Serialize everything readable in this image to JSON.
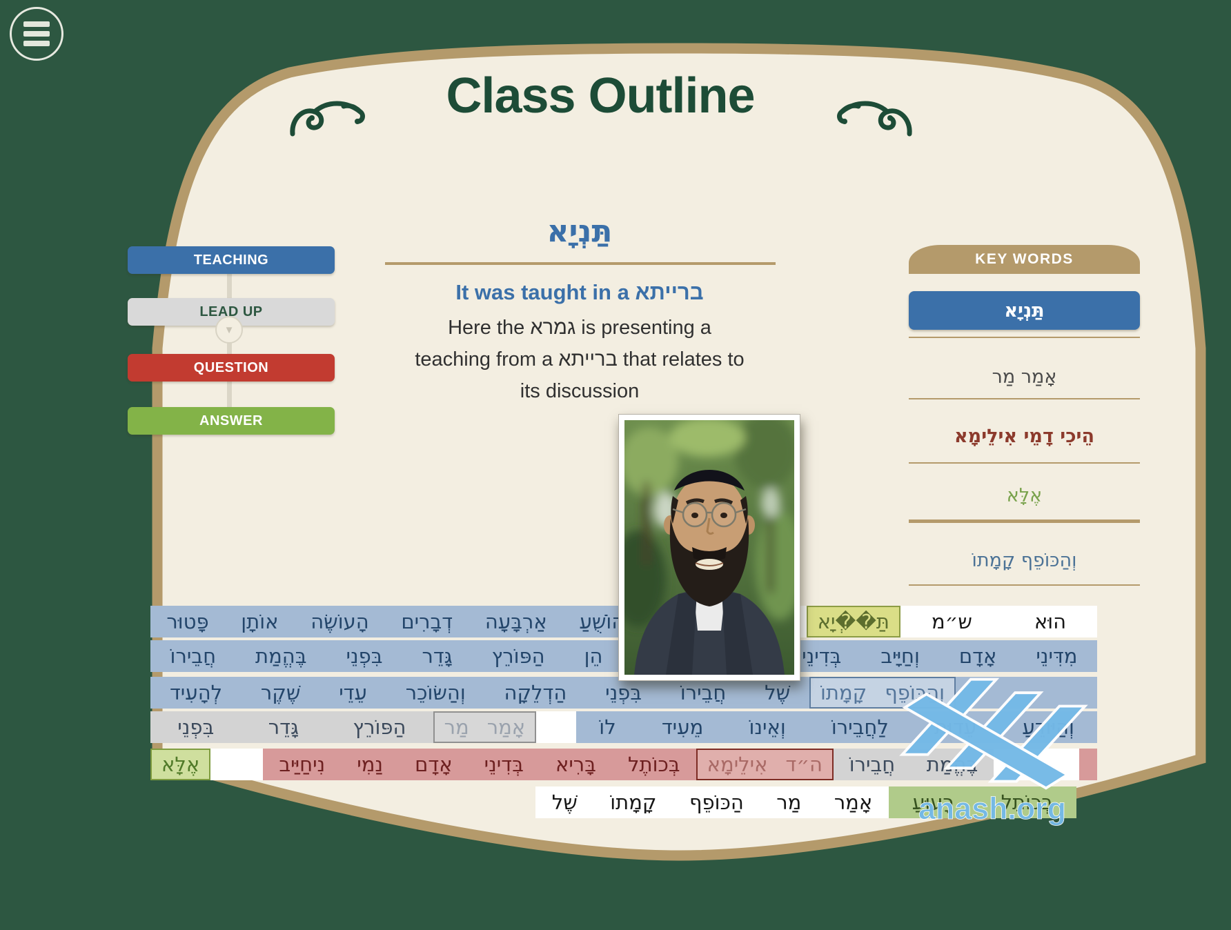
{
  "page_title": "Class Outline",
  "menu": {
    "icon": "hamburger",
    "label": "menu"
  },
  "steps": [
    {
      "label": "TEACHING",
      "role": "teaching",
      "color": "#3b70a9"
    },
    {
      "label": "LEAD UP",
      "role": "leadup",
      "color": "#d9d9d9"
    },
    {
      "label": "QUESTION",
      "role": "question",
      "color": "#c23b30"
    },
    {
      "label": "ANSWER",
      "role": "answer",
      "color": "#83b348"
    }
  ],
  "lesson": {
    "keyword_hebrew": "תַּנְיָא",
    "translation_prefix": "It was taught in a ",
    "translation_hebrew": "ברייתא",
    "explanation_lines": [
      "Here the גמרא is presenting a",
      "teaching from a ברייתא that relates to",
      "its discussion"
    ]
  },
  "keywords": {
    "header": "KEY WORDS",
    "items": [
      {
        "text": "תַּנְיָא",
        "style": "selected-blue"
      },
      {
        "text": "אָמַר מַר",
        "style": "dark"
      },
      {
        "text": "הֵיכִי דָמֵי אִילֵימָא",
        "style": "red"
      },
      {
        "text": "אֶלָּא",
        "style": "green"
      },
      {
        "text": "וְהַכּוֹפֵף קָמָתוֹ",
        "style": "steel-blue"
      }
    ]
  },
  "gemara": {
    "rows": [
      {
        "segs": [
          {
            "t": "white",
            "basis": 285,
            "w": [
              "הוּא",
              "ש״מ"
            ]
          },
          {
            "t": "white",
            "box": "teaching",
            "w": [
              "תַּ��ְיָא"
            ]
          },
          {
            "t": "wgap",
            "basis": 45
          },
          {
            "t": "blue",
            "grow": 1,
            "w": [
              "אָמַר",
              "רַבִּי",
              "יְהוֹשֻׁעַ",
              "אַרְבָּעָה",
              "דְבָרִים",
              "הָעוֹשֶׂה",
              "אוֹתָן",
              "פָּטוּר"
            ]
          }
        ]
      },
      {
        "segs": [
          {
            "t": "blue",
            "grow": 1,
            "w": [
              "מִדִּינֵי",
              "אָדָם",
              "וְחַיָּיב",
              "בְּדִינֵי",
              "שָׁמַיִם",
              "וְאֵלּוּ",
              "הֵן",
              "הַפּוֹרֵץ",
              "גָּדֵר",
              "בִּפְנֵי",
              "בֶּהֱמַת",
              "חֲבֵירוֹ"
            ]
          }
        ]
      },
      {
        "segs": [
          {
            "t": "blue",
            "basis": 205
          },
          {
            "t": "blue",
            "box": "keyword",
            "w": [
              "וְהַכּוֹפֵף",
              "קָמָתוֹ"
            ]
          },
          {
            "t": "blue",
            "grow": 1,
            "w": [
              "שֶׁל",
              "חֲבֵירוֹ",
              "בִּפְנֵי",
              "הַדְלֵקָה",
              "וְהַשּׂוֹכֵר",
              "עֵדֵי",
              "שֶׁקֶר",
              "לְהָעִיד"
            ]
          }
        ]
      },
      {
        "segs": [
          {
            "t": "blue",
            "grow": 737,
            "w": [
              "וְהַיּוֹדֵעַ",
              "עֵדוּת",
              "לַחֲבֵירוֹ",
              "וְאֵינוֹ",
              "מֵעִיד",
              "לוֹ"
            ]
          },
          {
            "t": "wgap",
            "basis": 58
          },
          {
            "t": "gray",
            "box": "leadup",
            "w": [
              "אָמַר",
              "מַר"
            ]
          },
          {
            "t": "gray",
            "grow": 400,
            "w": [
              "הַפּוֹרֵץ",
              "גָּדֵר",
              "בִּפְנֵי"
            ]
          }
        ]
      },
      {
        "segs": [
          {
            "t": "rsliver",
            "basis": 26
          },
          {
            "t": "wgap",
            "basis": 124
          },
          {
            "t": "gray",
            "basis": 232,
            "w": [
              "בֶּהֱמַת",
              "חֲבֵירוֹ"
            ]
          },
          {
            "t": "red",
            "box": "question",
            "w": [
              "ה״ד",
              "אִילֵימָא"
            ]
          },
          {
            "t": "red",
            "grow": 1,
            "w": [
              "בְּכוֹתֶל",
              "בָּרִיא",
              "בְּדִינֵי",
              "אָדָם",
              "נַמִי",
              "נִיחַיַּיב"
            ]
          },
          {
            "t": "wgap",
            "basis": 76
          },
          {
            "t": "green",
            "box": "answer",
            "w": [
              "אֶלָּא"
            ]
          }
        ]
      },
      {
        "segs": [
          {
            "t": "cgap",
            "basis": 30
          },
          {
            "t": "green",
            "basis": 272,
            "w": [
              "בְּכוֹתֶל",
              "רָעוּעַ"
            ]
          },
          {
            "t": "white",
            "basis": 512,
            "w": [
              "אָמַר",
              "מַר",
              "הַכּוֹפֵף",
              "קָמָתוֹ",
              "שֶׁל"
            ]
          },
          {
            "t": "cgap",
            "grow": 1
          }
        ]
      }
    ]
  },
  "watermark": {
    "text": "anash.org"
  },
  "colors": {
    "background_green": "#2d5741",
    "book_cream": "#f3eee1",
    "book_border_tan": "#b49a6b",
    "title_green": "#1d4c37",
    "accent_blue": "#3b70a9",
    "accent_red": "#c23b30",
    "accent_green": "#83b348",
    "accent_gray": "#d9d9d9",
    "highlight_blue": "#a4bad4",
    "highlight_gray": "#d3d3d3",
    "highlight_red": "#d79a9a",
    "highlight_green": "#b0cb8a",
    "keyword_box_yellow": "#dade87",
    "watermark_blue": "#74b9e7"
  }
}
